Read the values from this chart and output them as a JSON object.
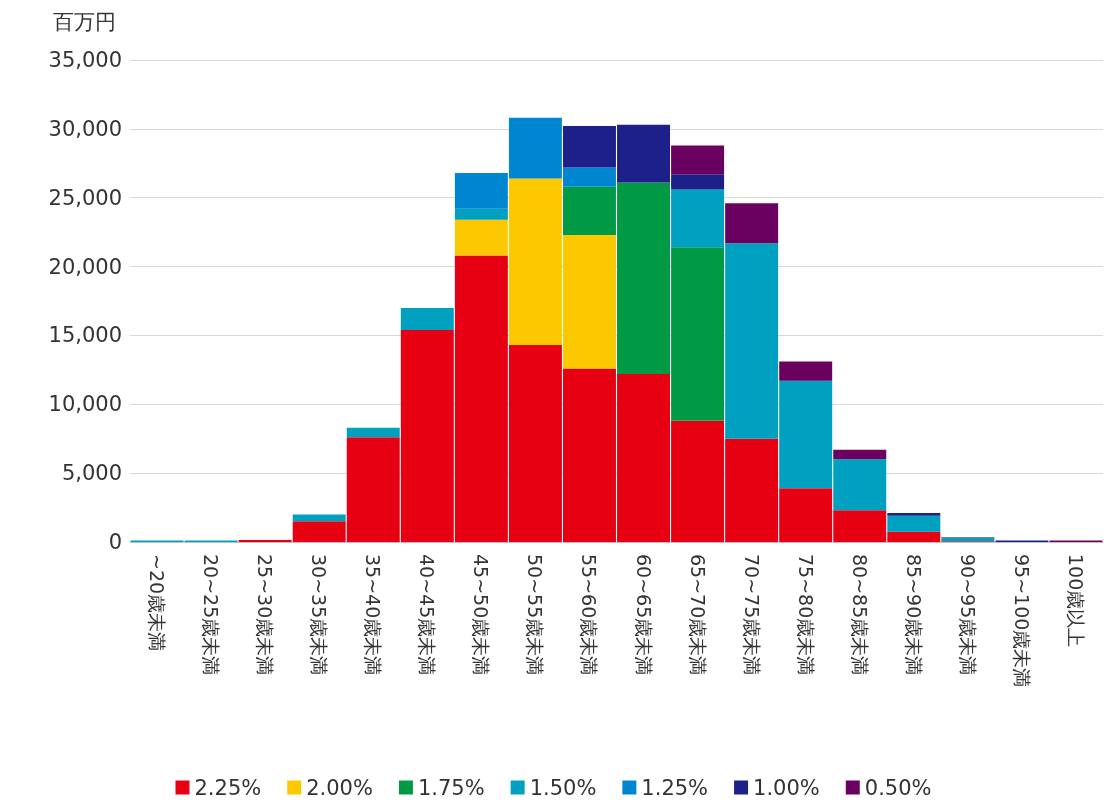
{
  "chart_data": {
    "type": "bar",
    "stacked": true,
    "ylabel": "百万円",
    "categories": [
      "~20歳未満",
      "20~25歳未満",
      "25~30歳未満",
      "30~35歳未満",
      "35~40歳未満",
      "40~45歳未満",
      "45~50歳未満",
      "50~55歳未満",
      "55~60歳未満",
      "60~65歳未満",
      "65~70歳未満",
      "70~75歳未満",
      "75~80歳未満",
      "80~85歳未満",
      "85~90歳未満",
      "90~95歳未満",
      "95~100歳未満",
      "100歳以上"
    ],
    "series": [
      {
        "name": "2.25%",
        "color": "#e60012",
        "values": [
          null,
          null,
          150,
          1500,
          7600,
          15400,
          20800,
          14300,
          12600,
          12200,
          8800,
          7500,
          3900,
          2300,
          750,
          50,
          null,
          null
        ]
      },
      {
        "name": "2.00%",
        "color": "#fcc800",
        "values": [
          null,
          null,
          null,
          null,
          null,
          null,
          2600,
          12100,
          9700,
          null,
          null,
          null,
          null,
          null,
          null,
          null,
          null,
          null
        ]
      },
      {
        "name": "1.75%",
        "color": "#009a44",
        "values": [
          null,
          null,
          null,
          null,
          null,
          null,
          null,
          null,
          3500,
          13900,
          12600,
          null,
          null,
          null,
          null,
          null,
          null,
          null
        ]
      },
      {
        "name": "1.50%",
        "color": "#00a0c1",
        "values": [
          100,
          100,
          null,
          500,
          700,
          1600,
          800,
          null,
          null,
          null,
          4200,
          14200,
          7800,
          3700,
          1150,
          250,
          null,
          null
        ]
      },
      {
        "name": "1.25%",
        "color": "#0086d1",
        "values": [
          null,
          null,
          null,
          null,
          null,
          null,
          2600,
          4400,
          1400,
          null,
          null,
          null,
          null,
          null,
          null,
          null,
          null,
          null
        ]
      },
      {
        "name": "1.00%",
        "color": "#1d2088",
        "values": [
          null,
          null,
          null,
          null,
          null,
          null,
          null,
          null,
          3000,
          4200,
          1100,
          null,
          null,
          null,
          200,
          50,
          100,
          null
        ]
      },
      {
        "name": "0.50%",
        "color": "#6a005f",
        "values": [
          null,
          null,
          null,
          null,
          null,
          null,
          null,
          null,
          null,
          null,
          2100,
          2900,
          1400,
          700,
          null,
          null,
          null,
          100
        ]
      }
    ],
    "ylim": [
      0,
      35000
    ],
    "yticks": [
      0,
      {
        "value": 5000,
        "label": "5,000"
      },
      {
        "value": 10000,
        "label": "10,000"
      },
      {
        "value": 15000,
        "label": "15,000"
      },
      {
        "value": 20000,
        "label": "20,000"
      },
      {
        "value": 25000,
        "label": "25,000"
      },
      {
        "value": 30000,
        "label": "30,000"
      },
      {
        "value": 35000,
        "label": "35,000"
      }
    ],
    "grid": "y",
    "legend": "bottom"
  }
}
